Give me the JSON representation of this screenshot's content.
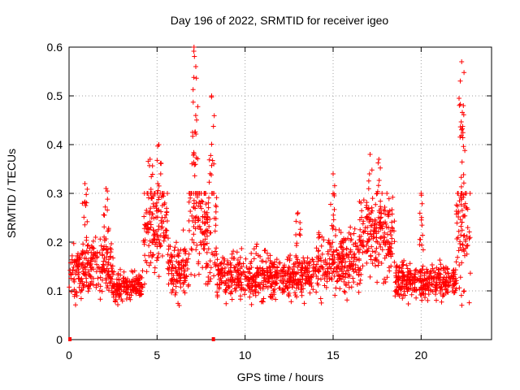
{
  "chart_data": {
    "type": "scatter",
    "title": "Day 196 of 2022, SRMTID for receiver igeo",
    "xlabel": "GPS time / hours",
    "ylabel": "SRMTID / TECUs",
    "xlim": [
      0,
      24
    ],
    "ylim": [
      0,
      0.6
    ],
    "xticks": [
      "0",
      "5",
      "10",
      "15",
      "20"
    ],
    "yticks": [
      "0",
      "0.1",
      "0.2",
      "0.3",
      "0.4",
      "0.5",
      "0.6"
    ],
    "grid": true,
    "marker": "plus",
    "color": "#ff0000",
    "zero_markers_x": [
      0.05,
      8.2
    ],
    "series_profile": [
      {
        "x0": 0.0,
        "x1": 0.8,
        "base": 0.14,
        "spread": 0.06
      },
      {
        "x0": 0.8,
        "x1": 2.5,
        "base": 0.15,
        "spread": 0.06
      },
      {
        "x0": 2.5,
        "x1": 4.2,
        "base": 0.11,
        "spread": 0.03
      },
      {
        "x0": 4.2,
        "x1": 5.6,
        "base": 0.24,
        "spread": 0.11
      },
      {
        "x0": 5.6,
        "x1": 6.8,
        "base": 0.14,
        "spread": 0.06
      },
      {
        "x0": 6.8,
        "x1": 7.6,
        "base": 0.25,
        "spread": 0.13
      },
      {
        "x0": 7.6,
        "x1": 8.4,
        "base": 0.22,
        "spread": 0.12
      },
      {
        "x0": 8.4,
        "x1": 14.0,
        "base": 0.13,
        "spread": 0.05
      },
      {
        "x0": 14.0,
        "x1": 16.5,
        "base": 0.16,
        "spread": 0.07
      },
      {
        "x0": 16.5,
        "x1": 18.5,
        "base": 0.21,
        "spread": 0.09
      },
      {
        "x0": 18.5,
        "x1": 22.0,
        "base": 0.12,
        "spread": 0.04
      },
      {
        "x0": 22.0,
        "x1": 22.8,
        "base": 0.22,
        "spread": 0.13
      }
    ],
    "peaks": [
      {
        "x": 0.9,
        "y": 0.32
      },
      {
        "x": 2.1,
        "y": 0.31
      },
      {
        "x": 4.6,
        "y": 0.37
      },
      {
        "x": 5.1,
        "y": 0.4
      },
      {
        "x": 7.1,
        "y": 0.6
      },
      {
        "x": 7.2,
        "y": 0.56
      },
      {
        "x": 8.1,
        "y": 0.5
      },
      {
        "x": 13.0,
        "y": 0.26
      },
      {
        "x": 15.0,
        "y": 0.34
      },
      {
        "x": 17.1,
        "y": 0.38
      },
      {
        "x": 17.6,
        "y": 0.37
      },
      {
        "x": 20.0,
        "y": 0.3
      },
      {
        "x": 22.3,
        "y": 0.57
      },
      {
        "x": 22.4,
        "y": 0.48
      }
    ]
  }
}
